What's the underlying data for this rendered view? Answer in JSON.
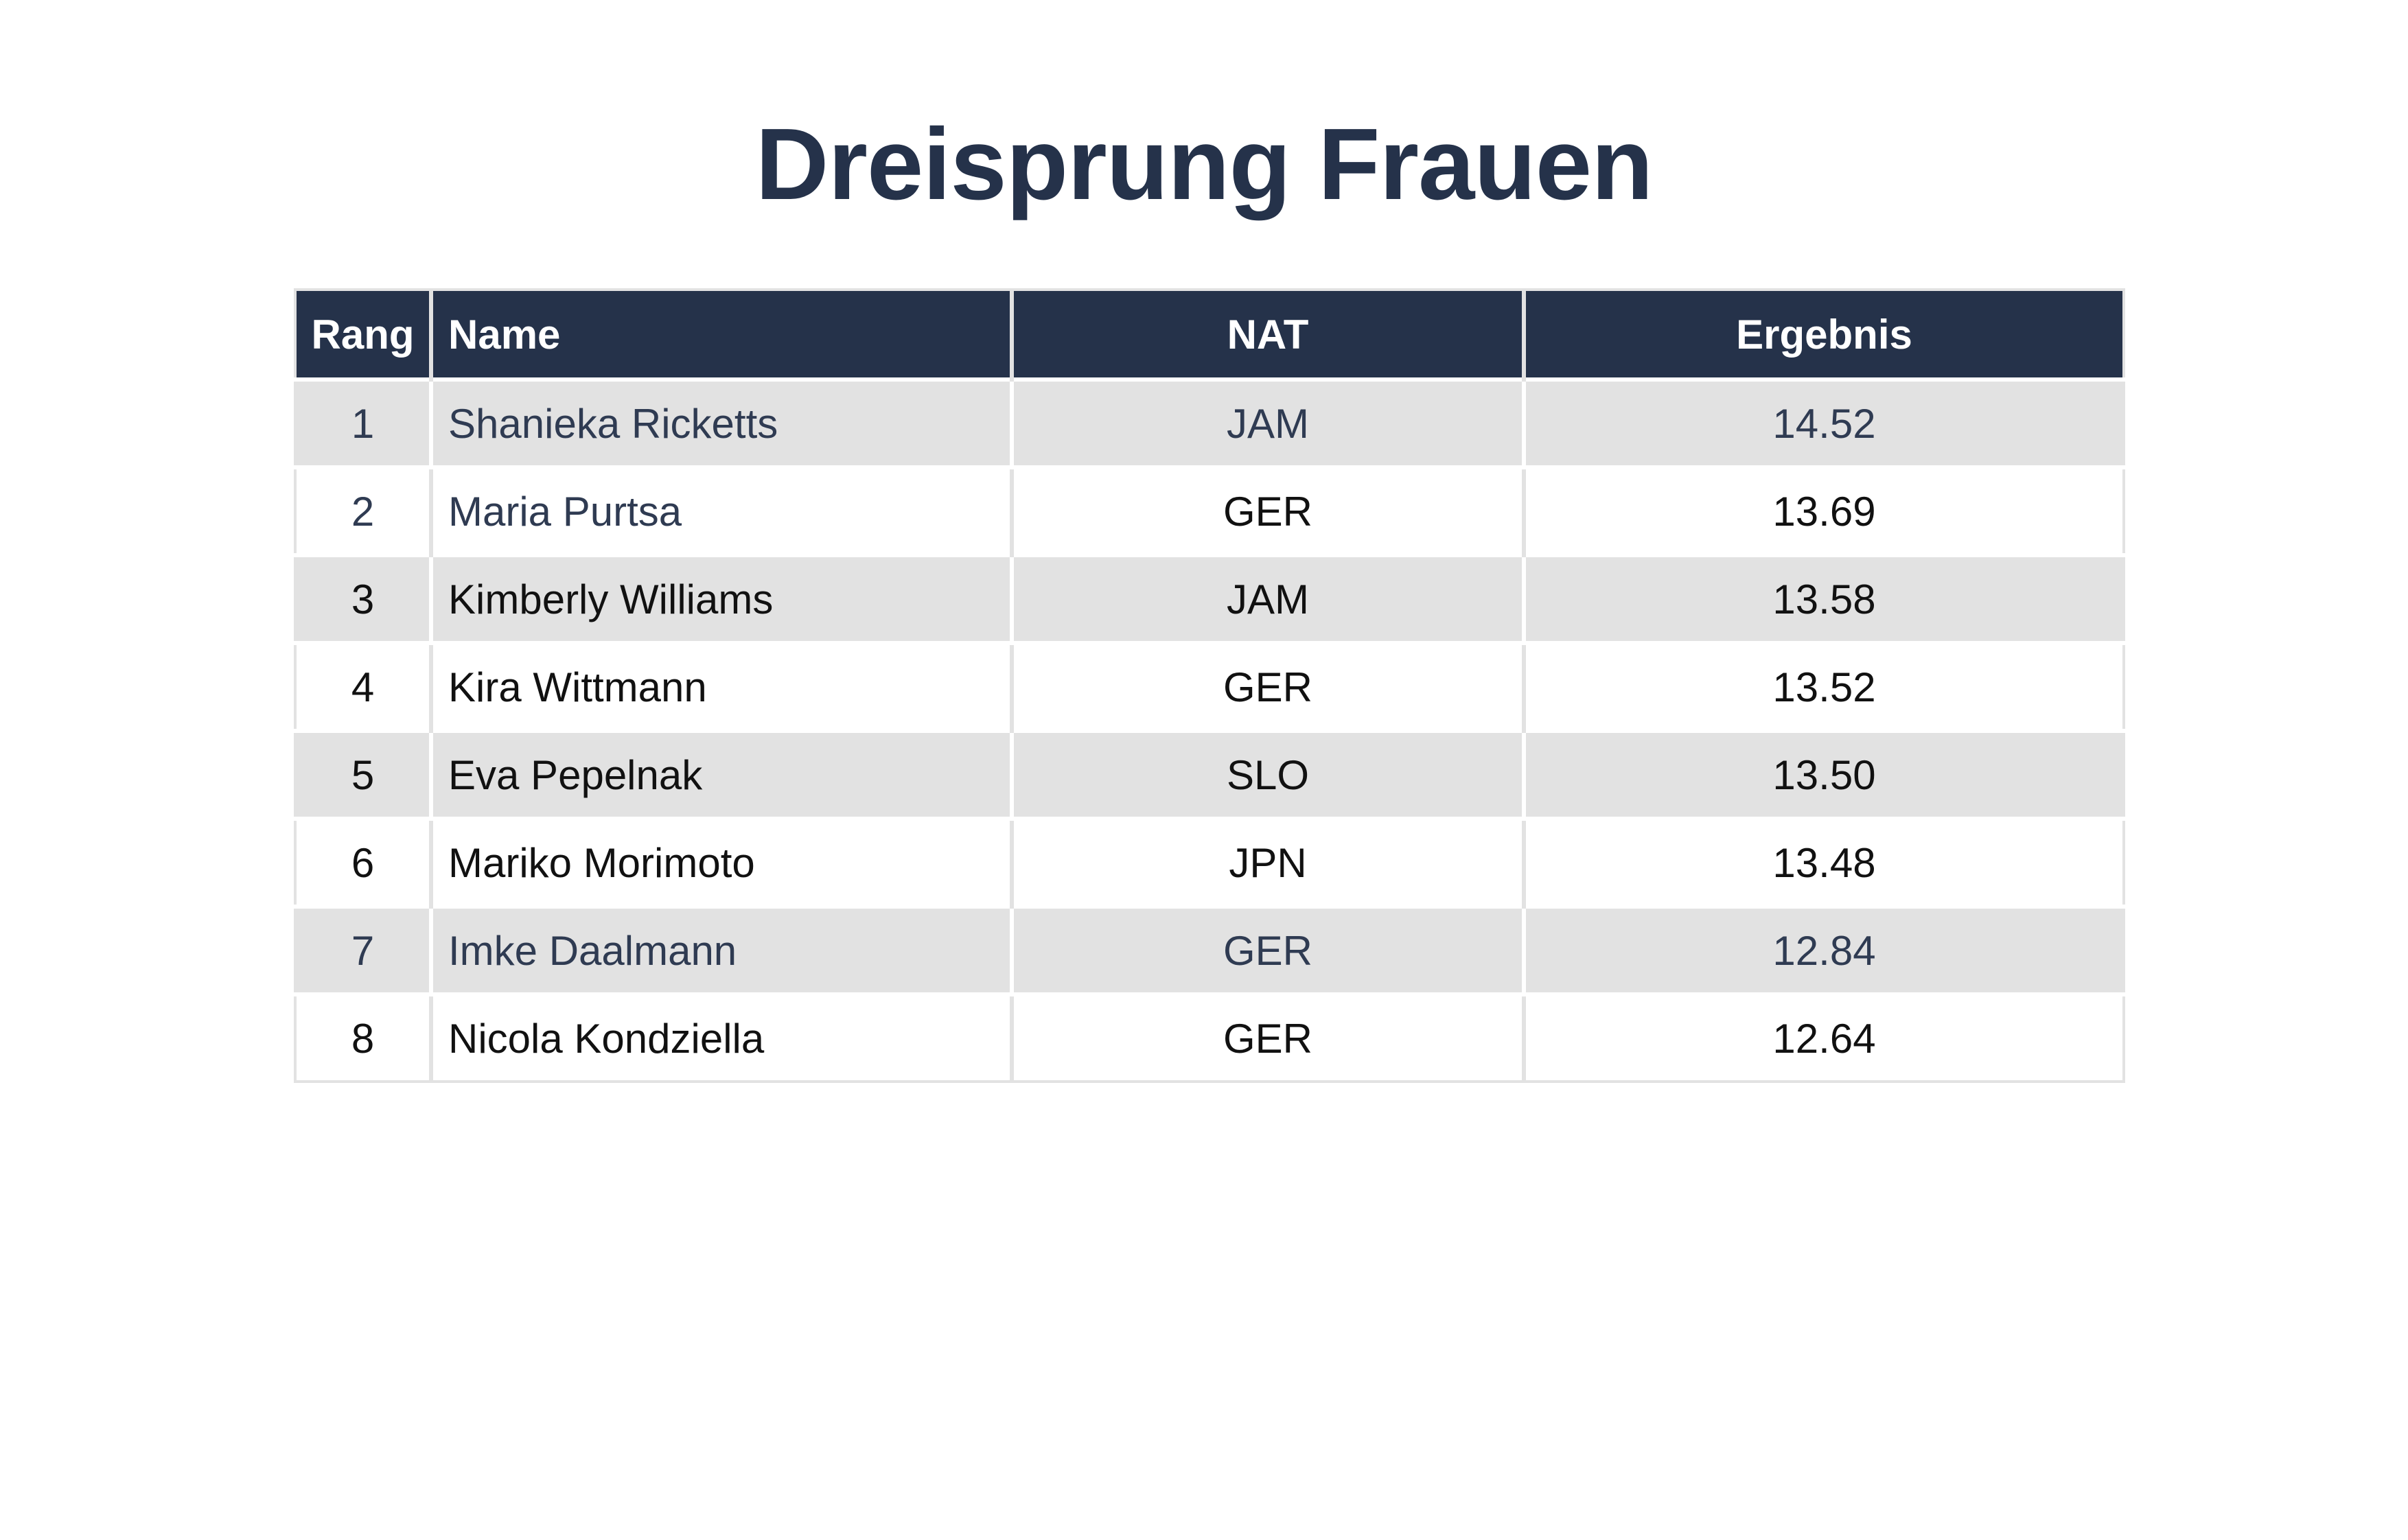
{
  "title": "Dreisprung Frauen",
  "table": {
    "headers": {
      "rang": "Rang",
      "name": "Name",
      "nat": "NAT",
      "ergebnis": "Ergebnis"
    },
    "rows": [
      {
        "rang": "1",
        "name": "Shanieka Ricketts",
        "nat": "JAM",
        "ergebnis": "14.52"
      },
      {
        "rang": "2",
        "name": "Maria Purtsa",
        "nat": "GER",
        "ergebnis": "13.69"
      },
      {
        "rang": "3",
        "name": "Kimberly Williams",
        "nat": "JAM",
        "ergebnis": "13.58"
      },
      {
        "rang": "4",
        "name": "Kira Wittmann",
        "nat": "GER",
        "ergebnis": "13.52"
      },
      {
        "rang": "5",
        "name": "Eva Pepelnak",
        "nat": "SLO",
        "ergebnis": "13.50"
      },
      {
        "rang": "6",
        "name": "Mariko Morimoto",
        "nat": "JPN",
        "ergebnis": "13.48"
      },
      {
        "rang": "7",
        "name": "Imke Daalmann",
        "nat": "GER",
        "ergebnis": "12.84"
      },
      {
        "rang": "8",
        "name": "Nicola Kondziella",
        "nat": "GER",
        "ergebnis": "12.64"
      }
    ]
  },
  "colors": {
    "header_bg": "#25324a",
    "title": "#25324a",
    "stripe": "#e2e2e2"
  }
}
